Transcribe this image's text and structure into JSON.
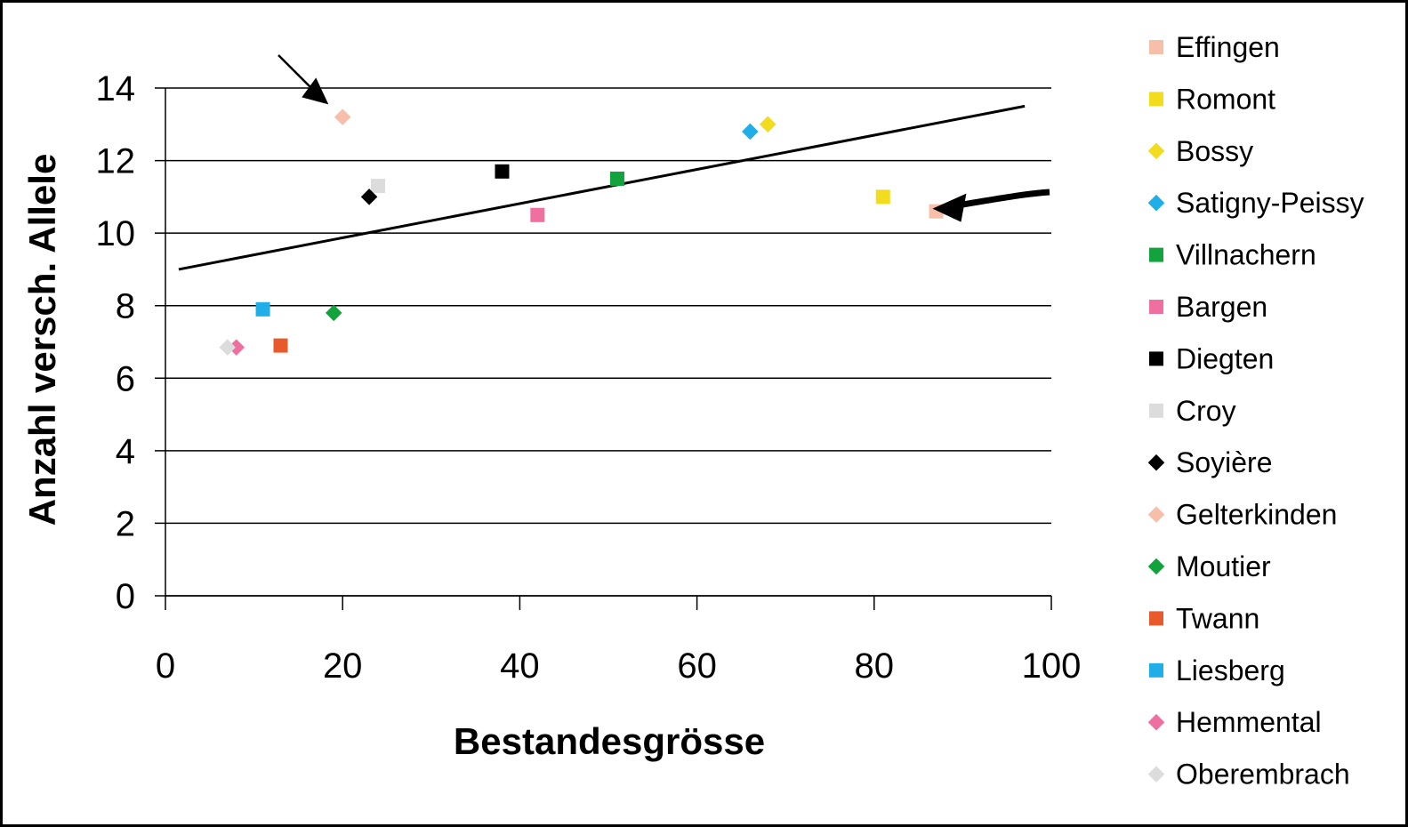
{
  "chart_data": {
    "type": "scatter",
    "xlabel": "Bestandesgrösse",
    "ylabel": "Anzahl versch. Allele",
    "xlim": [
      0,
      100
    ],
    "ylim": [
      0,
      14
    ],
    "x_ticks": [
      0,
      20,
      40,
      60,
      80,
      100
    ],
    "y_ticks": [
      0,
      2,
      4,
      6,
      8,
      10,
      12,
      14
    ],
    "grid": "horizontal",
    "legend_position": "right",
    "series": [
      {
        "name": "Effingen",
        "marker": "square",
        "color": "#f7bfaa",
        "points": [
          [
            87,
            10.6
          ]
        ]
      },
      {
        "name": "Romont",
        "marker": "square",
        "color": "#f2dc1e",
        "points": [
          [
            81,
            11.0
          ]
        ]
      },
      {
        "name": "Bossy",
        "marker": "diamond",
        "color": "#f2dc1e",
        "points": [
          [
            68,
            13.0
          ]
        ]
      },
      {
        "name": "Satigny-Peissy",
        "marker": "diamond",
        "color": "#1faee8",
        "points": [
          [
            66,
            12.8
          ]
        ]
      },
      {
        "name": "Villnachern",
        "marker": "square",
        "color": "#12a33d",
        "points": [
          [
            51,
            11.5
          ]
        ]
      },
      {
        "name": "Bargen",
        "marker": "square",
        "color": "#ee6fa0",
        "points": [
          [
            42,
            10.5
          ]
        ]
      },
      {
        "name": "Diegten",
        "marker": "square",
        "color": "#000000",
        "points": [
          [
            38,
            11.7
          ]
        ]
      },
      {
        "name": "Croy",
        "marker": "square",
        "color": "#dcdcdc",
        "points": [
          [
            24,
            11.3
          ]
        ]
      },
      {
        "name": "Soyière",
        "marker": "diamond",
        "color": "#000000",
        "points": [
          [
            23,
            11.0
          ]
        ]
      },
      {
        "name": "Gelterkinden",
        "marker": "diamond",
        "color": "#f7bfaa",
        "points": [
          [
            20,
            13.2
          ]
        ]
      },
      {
        "name": "Moutier",
        "marker": "diamond",
        "color": "#12a33d",
        "points": [
          [
            19,
            7.8
          ]
        ]
      },
      {
        "name": "Twann",
        "marker": "square",
        "color": "#e85a2a",
        "points": [
          [
            13,
            6.9
          ]
        ]
      },
      {
        "name": "Liesberg",
        "marker": "square",
        "color": "#1faee8",
        "points": [
          [
            11,
            7.9
          ]
        ]
      },
      {
        "name": "Hemmental",
        "marker": "diamond",
        "color": "#ee6fa0",
        "points": [
          [
            8,
            6.85
          ]
        ]
      },
      {
        "name": "Oberembrach",
        "marker": "diamond",
        "color": "#dcdcdc",
        "points": [
          [
            7,
            6.85
          ]
        ]
      }
    ],
    "trendline": {
      "x": [
        1.5,
        97
      ],
      "y": [
        9.0,
        13.5
      ]
    },
    "annotations": [
      {
        "type": "arrow",
        "target_x": 18,
        "target_y": 13.6
      },
      {
        "type": "arrow",
        "target_x": 89,
        "target_y": 10.7
      }
    ]
  }
}
